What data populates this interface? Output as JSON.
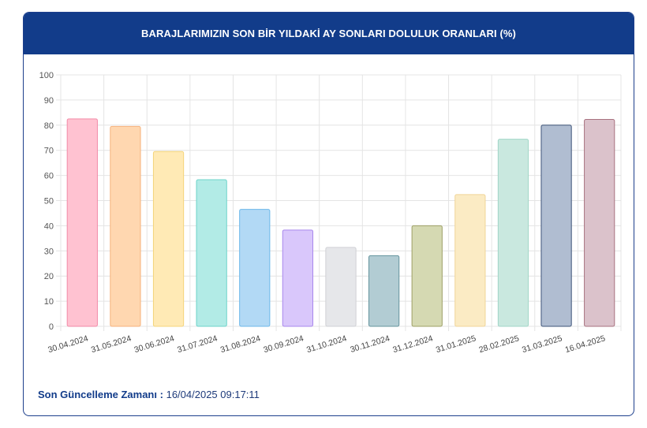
{
  "header": {
    "title": "BARAJLARIMIZIN SON BİR YILDAKİ AY SONLARI DOLULUK ORANLARI (%)"
  },
  "footer": {
    "label": "Son Güncelleme Zamanı",
    "separator": ":",
    "value": "16/04/2025 09:17:11"
  },
  "chart_data": {
    "type": "bar",
    "title": "BARAJLARIMIZIN SON BİR YILDAKİ AY SONLARI DOLULUK ORANLARI (%)",
    "xlabel": "",
    "ylabel": "",
    "ylim": [
      0,
      100
    ],
    "yticks": [
      0,
      10,
      20,
      30,
      40,
      50,
      60,
      70,
      80,
      90,
      100
    ],
    "grid": true,
    "legend": "none",
    "categories": [
      "30.04.2024",
      "31.05.2024",
      "30.06.2024",
      "31.07.2024",
      "31.08.2024",
      "30.09.2024",
      "31.10.2024",
      "30.11.2024",
      "31.12.2024",
      "31.01.2025",
      "28.02.2025",
      "31.03.2025",
      "16.04.2025"
    ],
    "values": [
      82.5,
      79.5,
      69.5,
      58.3,
      46.5,
      38.3,
      31.4,
      28.1,
      40.0,
      52.4,
      74.4,
      80.0,
      82.3
    ],
    "fill_colors": [
      "#ffc2d1",
      "#ffd7b0",
      "#ffeab5",
      "#b2ebe6",
      "#b2d9f5",
      "#d9c7fb",
      "#e6e7ea",
      "#b2ccd3",
      "#d5d9b2",
      "#fbebc4",
      "#c9e8df",
      "#b0bdd1",
      "#dbc2cb"
    ],
    "border_colors": [
      "#f28aa7",
      "#f5b27c",
      "#f4d47a",
      "#6dd3ca",
      "#6cb8ea",
      "#a887ec",
      "#cfd1d5",
      "#64949d",
      "#9ea066",
      "#f0d598",
      "#a0d6c7",
      "#3e5478",
      "#a8727f"
    ]
  }
}
